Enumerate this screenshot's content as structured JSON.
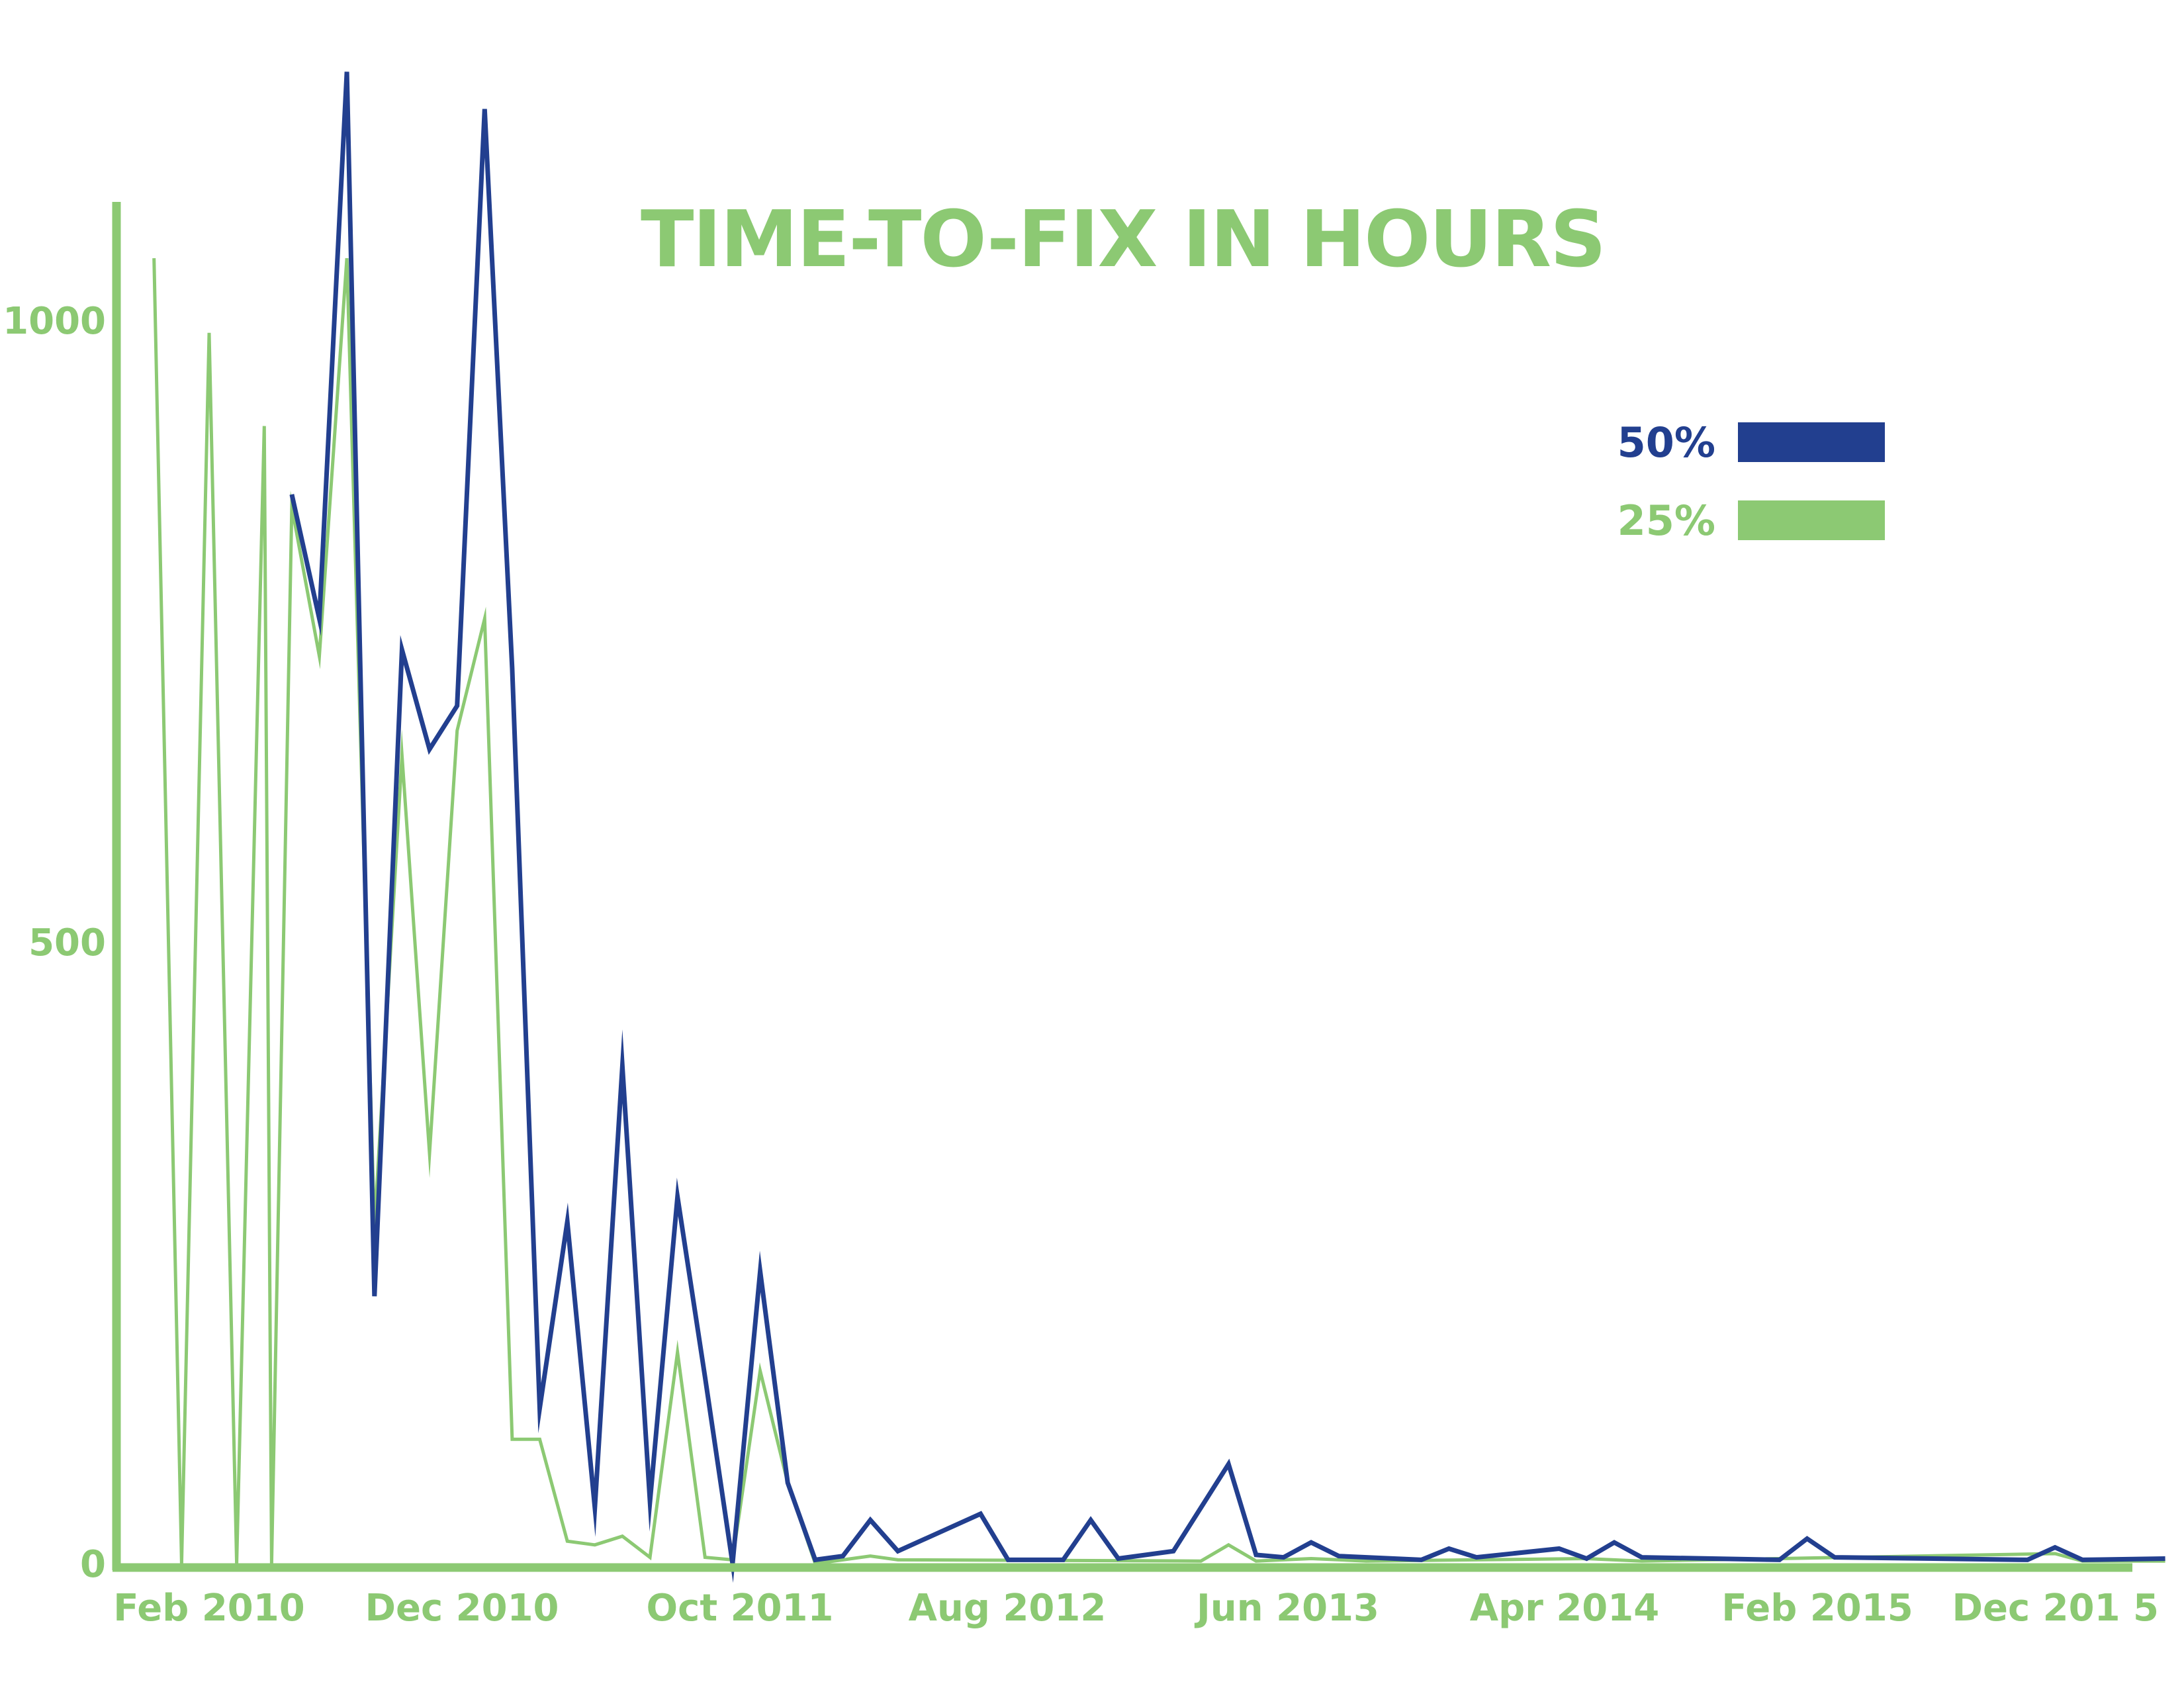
{
  "colors": {
    "blue": "#223f8f",
    "green": "#8cc973",
    "background": "#ffffff"
  },
  "chart_data": {
    "type": "line",
    "title": "TIME-TO-FIX IN HOURS",
    "xlabel": "",
    "ylabel": "",
    "x_ticks": [
      "Feb 2010",
      "Dec 2010",
      "Oct 2011",
      "Aug 2012",
      "Jun 2013",
      "Apr 2014",
      "Feb 2015",
      "Dec 201 5"
    ],
    "y_ticks": [
      0,
      500,
      1000
    ],
    "ylim": [
      0,
      1090
    ],
    "xlim": [
      "2009-12",
      "2016-01"
    ],
    "grid": false,
    "legend_position": "top-right",
    "series": [
      {
        "name": "50%",
        "color": "#223f8f",
        "points": [
          [
            "2010-05-20",
            860
          ],
          [
            "2010-06-20",
            760
          ],
          [
            "2010-07-20",
            1200
          ],
          [
            "2010-08-20",
            215
          ],
          [
            "2010-09-20",
            735
          ],
          [
            "2010-10-20",
            655
          ],
          [
            "2010-11-20",
            690
          ],
          [
            "2010-12-20",
            1170
          ],
          [
            "2011-01-20",
            720
          ],
          [
            "2011-02-20",
            125
          ],
          [
            "2011-03-20",
            275
          ],
          [
            "2011-04-20",
            45
          ],
          [
            "2011-05-20",
            400
          ],
          [
            "2011-06-20",
            50
          ],
          [
            "2011-07-20",
            295
          ],
          [
            "2011-08-20",
            150
          ],
          [
            "2011-09-20",
            0
          ],
          [
            "2011-10-20",
            235
          ],
          [
            "2011-11-20",
            65
          ],
          [
            "2011-12-20",
            3
          ],
          [
            "2012-01-20",
            6
          ],
          [
            "2012-02-20",
            35
          ],
          [
            "2012-03-20",
            10
          ],
          [
            "2012-06-20",
            40
          ],
          [
            "2012-07-20",
            3
          ],
          [
            "2012-09-20",
            3
          ],
          [
            "2012-10-20",
            35
          ],
          [
            "2012-11-20",
            4
          ],
          [
            "2013-01-20",
            10
          ],
          [
            "2013-03-20",
            80
          ],
          [
            "2013-04-20",
            7
          ],
          [
            "2013-05-20",
            5
          ],
          [
            "2013-06-20",
            17
          ],
          [
            "2013-07-20",
            6
          ],
          [
            "2013-10-20",
            3
          ],
          [
            "2013-11-20",
            12
          ],
          [
            "2013-12-20",
            5
          ],
          [
            "2014-03-20",
            12
          ],
          [
            "2014-04-20",
            4
          ],
          [
            "2014-05-20",
            17
          ],
          [
            "2014-06-20",
            5
          ],
          [
            "2014-11-20",
            3
          ],
          [
            "2014-12-20",
            20
          ],
          [
            "2015-01-20",
            5
          ],
          [
            "2015-08-20",
            3
          ],
          [
            "2015-09-20",
            13
          ],
          [
            "2015-10-20",
            3
          ],
          [
            "2016-01-20",
            4
          ]
        ]
      },
      {
        "name": "25%",
        "color": "#8cc973",
        "points": [
          [
            "2009-12-20",
            1050
          ],
          [
            "2010-01-20",
            0
          ],
          [
            "2010-02-20",
            990
          ],
          [
            "2010-03-20",
            0
          ],
          [
            "2010-04-20",
            915
          ],
          [
            "2010-04-28",
            0
          ],
          [
            "2010-05-20",
            850
          ],
          [
            "2010-06-20",
            730
          ],
          [
            "2010-07-20",
            1050
          ],
          [
            "2010-08-20",
            270
          ],
          [
            "2010-09-20",
            650
          ],
          [
            "2010-10-20",
            330
          ],
          [
            "2010-11-20",
            670
          ],
          [
            "2010-12-20",
            760
          ],
          [
            "2011-01-20",
            100
          ],
          [
            "2011-02-20",
            100
          ],
          [
            "2011-03-20",
            18
          ],
          [
            "2011-04-20",
            15
          ],
          [
            "2011-05-20",
            22
          ],
          [
            "2011-06-20",
            5
          ],
          [
            "2011-07-20",
            170
          ],
          [
            "2011-08-20",
            5
          ],
          [
            "2011-09-20",
            3
          ],
          [
            "2011-10-20",
            155
          ],
          [
            "2011-11-20",
            65
          ],
          [
            "2011-12-20",
            0
          ],
          [
            "2012-01-20",
            3
          ],
          [
            "2012-02-20",
            6
          ],
          [
            "2012-03-20",
            3
          ],
          [
            "2013-02-20",
            2
          ],
          [
            "2013-03-20",
            15
          ],
          [
            "2013-04-20",
            2
          ],
          [
            "2013-06-20",
            4
          ],
          [
            "2013-08-20",
            2
          ],
          [
            "2014-04-20",
            4
          ],
          [
            "2014-06-20",
            2
          ],
          [
            "2015-09-20",
            8
          ],
          [
            "2015-10-20",
            2
          ],
          [
            "2016-01-20",
            2
          ]
        ]
      }
    ]
  }
}
